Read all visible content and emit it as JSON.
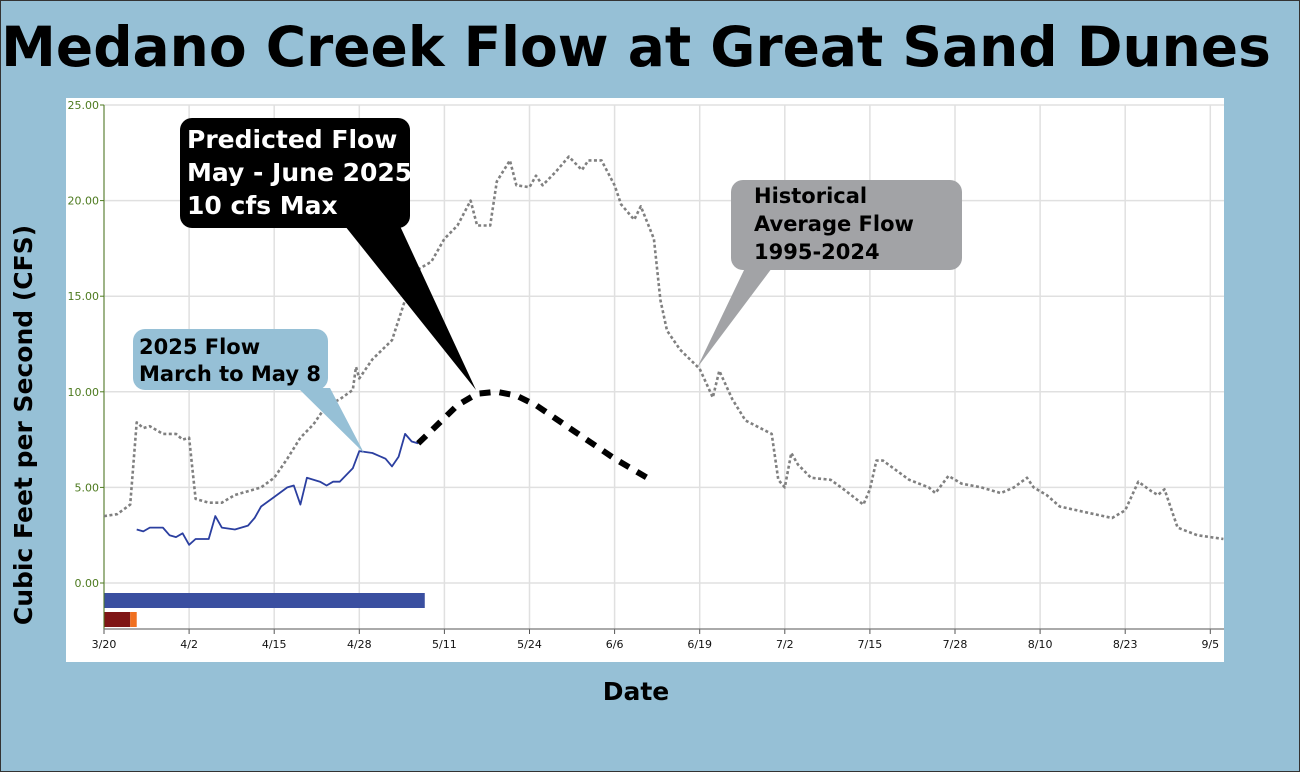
{
  "chart_data": {
    "type": "line",
    "title": "Medano Creek Flow at Great Sand Dunes",
    "xlabel": "Date",
    "ylabel": "Cubic Feet per Second (CFS)",
    "x_unit": "days since 3/20",
    "xlim": [
      0,
      172
    ],
    "ylim": [
      -2.5,
      25
    ],
    "grid": true,
    "yticks": [
      0,
      5,
      10,
      15,
      20,
      25
    ],
    "ytick_labels": [
      "0.00",
      "5.00",
      "10.00",
      "15.00",
      "20.00",
      "25.00"
    ],
    "xticks": [
      0,
      13,
      26,
      39,
      52,
      65,
      78,
      91,
      104,
      117,
      130,
      143,
      156,
      169
    ],
    "xtick_labels": [
      "3/20",
      "4/2",
      "4/15",
      "4/28",
      "5/11",
      "5/24",
      "6/6",
      "6/19",
      "7/2",
      "7/15",
      "7/28",
      "8/10",
      "8/23",
      "9/5"
    ],
    "series": [
      {
        "name": "Historical Average Flow 1995-2024",
        "color": "#808080",
        "style": "dotted",
        "x": [
          0,
          2,
          4,
          5,
          6,
          7,
          9,
          11,
          12,
          13,
          14,
          16,
          18,
          20,
          22,
          24,
          26,
          28,
          30,
          32,
          34,
          36,
          38,
          38.5,
          39,
          41,
          44,
          46,
          48,
          50,
          52,
          54,
          56,
          57,
          59,
          60,
          62,
          63,
          65,
          66,
          67,
          69,
          71,
          73,
          74,
          76,
          78,
          79,
          81,
          82,
          84,
          85,
          86,
          88,
          91,
          93,
          94,
          96,
          98,
          102,
          103,
          104,
          105,
          106,
          108,
          111,
          113,
          116,
          117,
          118,
          119,
          121,
          123,
          126,
          127,
          129,
          131,
          134,
          137,
          139,
          141,
          142,
          144,
          146,
          150,
          154,
          156,
          158,
          160,
          161,
          162,
          164,
          167,
          169,
          171
        ],
        "y": [
          3.5,
          3.6,
          4.1,
          8.4,
          8.1,
          8.2,
          7.8,
          7.8,
          7.5,
          7.6,
          4.4,
          4.2,
          4.2,
          4.6,
          4.8,
          5.0,
          5.5,
          6.5,
          7.6,
          8.3,
          9.3,
          9.6,
          10.1,
          11.3,
          10.7,
          11.7,
          12.7,
          14.8,
          16.4,
          16.8,
          18.0,
          18.7,
          20.0,
          18.7,
          18.7,
          21.0,
          22.1,
          20.8,
          20.7,
          21.3,
          20.8,
          21.5,
          22.3,
          21.6,
          22.1,
          22.1,
          20.8,
          19.8,
          19.0,
          19.7,
          18.0,
          14.8,
          13.2,
          12.2,
          11.2,
          9.7,
          11.1,
          9.6,
          8.5,
          7.8,
          5.4,
          5.0,
          6.8,
          6.2,
          5.5,
          5.4,
          4.9,
          4.1,
          4.9,
          6.4,
          6.4,
          5.9,
          5.4,
          5.0,
          4.7,
          5.6,
          5.2,
          5.0,
          4.7,
          5.0,
          5.5,
          5.0,
          4.6,
          4.0,
          3.7,
          3.4,
          3.8,
          5.3,
          4.8,
          4.6,
          4.9,
          2.9,
          2.5,
          2.4,
          2.3
        ]
      },
      {
        "name": "2025 Flow March to May 8",
        "color": "#2b3fa0",
        "style": "solid",
        "x": [
          5,
          6,
          7,
          9,
          10,
          11,
          12,
          13,
          14,
          16,
          17,
          18,
          20,
          22,
          23,
          24,
          26,
          28,
          29,
          30,
          31,
          33,
          34,
          35,
          36,
          38,
          39,
          41,
          43,
          44,
          45,
          46,
          47,
          48
        ],
        "y": [
          2.8,
          2.7,
          2.9,
          2.9,
          2.5,
          2.4,
          2.6,
          2.0,
          2.3,
          2.3,
          3.5,
          2.9,
          2.8,
          3.0,
          3.4,
          4.0,
          4.5,
          5.0,
          5.1,
          4.1,
          5.5,
          5.3,
          5.1,
          5.3,
          5.3,
          6.0,
          6.9,
          6.8,
          6.5,
          6.1,
          6.6,
          7.8,
          7.4,
          7.3
        ]
      },
      {
        "name": "Predicted Flow May - June 2025",
        "color": "#000000",
        "style": "dashed",
        "x": [
          48,
          51,
          54,
          57,
          60,
          63,
          66,
          69,
          72,
          75,
          78,
          81,
          84
        ],
        "y": [
          7.3,
          8.3,
          9.3,
          9.9,
          10.0,
          9.8,
          9.3,
          8.6,
          7.9,
          7.2,
          6.5,
          5.9,
          5.3
        ]
      }
    ],
    "bars": [
      {
        "row": 1,
        "start": 0,
        "end": 49,
        "color": "#3a4fa0"
      },
      {
        "row": 2,
        "start": 0,
        "end": 4,
        "color": "#7f1616"
      },
      {
        "row": 2,
        "start": 4,
        "end": 5,
        "color": "#f07020"
      }
    ],
    "annotations": [
      {
        "id": "predicted",
        "lines": [
          "Predicted Flow",
          "May - June 2025",
          "10 cfs Max"
        ],
        "fill": "#000000"
      },
      {
        "id": "current",
        "lines": [
          "2025 Flow",
          "March to May 8"
        ],
        "fill": "#96c0d6"
      },
      {
        "id": "historical",
        "lines": [
          "Historical",
          "Average Flow",
          "1995-2024"
        ],
        "fill": "#a2a3a6"
      }
    ]
  }
}
